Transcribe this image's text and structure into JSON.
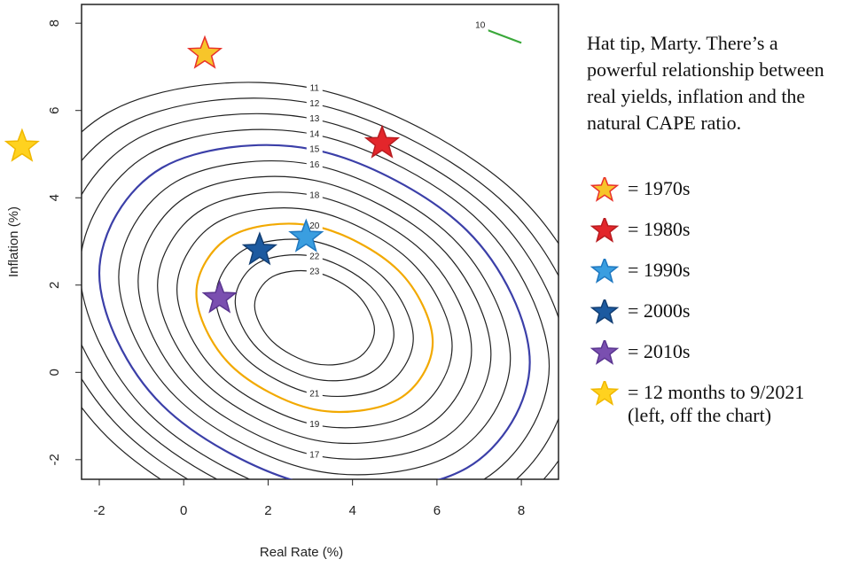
{
  "chart_data": {
    "type": "contour",
    "x_label": "Real Rate (%)",
    "y_label": "Inflation (%)",
    "xlim": [
      -2.42,
      8.88
    ],
    "ylim": [
      -2.45,
      8.43
    ],
    "xticks": [
      -2,
      0,
      2,
      4,
      6,
      8
    ],
    "yticks": [
      -2,
      0,
      2,
      4,
      6,
      8
    ],
    "note": "Hat tip, Marty.  There’s a powerful relationship between real yields, inflation and the natural CAPE ratio.",
    "contours": [
      {
        "level": 23,
        "color": "#222222",
        "closed": true,
        "x": [
          4.52,
          4.1,
          3.1,
          2.1,
          1.68,
          2.1,
          3.1,
          4.1
        ],
        "y": [
          0.97,
          1.79,
          2.3,
          2.19,
          1.53,
          0.71,
          0.2,
          0.31
        ]
      },
      {
        "level": 22,
        "color": "#222222",
        "closed": true,
        "x": [
          4.98,
          4.43,
          3.1,
          1.77,
          1.22,
          1.77,
          3.1,
          4.43
        ],
        "y": [
          0.87,
          1.97,
          2.65,
          2.51,
          1.63,
          0.53,
          -0.15,
          -0.01
        ]
      },
      {
        "level": 21,
        "color": "#222222",
        "closed": true,
        "x": [
          5.44,
          4.75,
          3.1,
          1.45,
          0.76,
          1.45,
          3.1,
          4.75
        ],
        "y": [
          0.78,
          2.16,
          3.0,
          2.82,
          1.72,
          0.34,
          -0.5,
          -0.32
        ]
      },
      {
        "level": 20,
        "color": "#f2a900",
        "closed": true,
        "x": [
          5.9,
          5.08,
          3.1,
          1.12,
          0.3,
          1.12,
          3.1,
          5.08
        ],
        "y": [
          0.69,
          2.34,
          3.35,
          3.12,
          1.81,
          0.16,
          -0.85,
          -0.62
        ]
      },
      {
        "level": 19,
        "color": "#222222",
        "closed": true,
        "x": [
          6.36,
          5.4,
          3.1,
          0.8,
          -0.16,
          0.8,
          3.1,
          5.4
        ],
        "y": [
          0.6,
          2.52,
          3.7,
          3.44,
          1.9,
          -0.02,
          -1.2,
          -0.94
        ]
      },
      {
        "level": 18,
        "color": "#222222",
        "closed": true,
        "x": [
          6.82,
          5.73,
          3.1,
          0.47,
          -0.62,
          0.47,
          3.1,
          5.73
        ],
        "y": [
          0.51,
          2.71,
          4.05,
          3.75,
          1.99,
          -0.21,
          -1.55,
          -1.25
        ]
      },
      {
        "level": 17,
        "color": "#222222",
        "closed": true,
        "x": [
          7.28,
          6.06,
          3.1,
          0.14,
          -1.08,
          0.14,
          3.1,
          6.06
        ],
        "y": [
          0.41,
          2.89,
          4.4,
          4.07,
          2.09,
          -0.39,
          -1.9,
          -1.57
        ]
      },
      {
        "level": 16,
        "color": "#222222",
        "closed": true,
        "x": [
          7.74,
          6.38,
          3.1,
          -0.18,
          -1.54,
          -0.18,
          3.1,
          6.38
        ],
        "y": [
          0.32,
          3.07,
          4.75,
          4.37,
          2.18,
          -0.57,
          -2.25,
          -1.87
        ]
      },
      {
        "level": 15,
        "color": "#3b3fa8",
        "closed": true,
        "x": [
          8.2,
          6.71,
          3.1,
          -0.51,
          -2.0,
          -0.51,
          3.1,
          6.71
        ],
        "y": [
          0.23,
          3.25,
          5.1,
          4.69,
          2.27,
          -0.75,
          -2.6,
          -2.19
        ]
      },
      {
        "level": 14,
        "color": "#222222",
        "closed": true,
        "x": [
          8.66,
          7.03,
          3.1,
          -0.83,
          -2.46,
          -0.83,
          3.1,
          7.03
        ],
        "y": [
          0.14,
          3.44,
          5.45,
          5.0,
          2.36,
          -0.94,
          -2.95,
          -2.5
        ]
      },
      {
        "level": 13,
        "color": "#222222",
        "closed": true,
        "x": [
          9.12,
          7.36,
          3.1,
          -1.16,
          -2.92,
          -1.16,
          3.1,
          7.36
        ],
        "y": [
          0.05,
          3.62,
          5.8,
          5.32,
          2.45,
          -1.12,
          -3.3,
          -2.82
        ]
      },
      {
        "level": 12,
        "color": "#222222",
        "closed": true,
        "x": [
          9.58,
          7.68,
          3.1,
          -1.48,
          -3.38,
          -1.48,
          3.1,
          7.68
        ],
        "y": [
          -0.05,
          3.8,
          6.15,
          5.62,
          2.55,
          -1.3,
          -3.65,
          -3.12
        ]
      },
      {
        "level": 11,
        "color": "#222222",
        "closed": true,
        "x": [
          10.04,
          8.01,
          3.1,
          -1.81,
          -3.84,
          -1.81,
          3.1,
          8.01
        ],
        "y": [
          -0.14,
          3.98,
          6.5,
          5.94,
          2.64,
          -1.48,
          -4.0,
          -3.52
        ]
      },
      {
        "level": 10,
        "color": "#3aa83a",
        "closed": false,
        "x": [
          6.9,
          8.0
        ],
        "y": [
          7.95,
          7.55
        ]
      }
    ],
    "series": [
      {
        "name": "= 1970s",
        "color": "#f7c52a",
        "stroke": "#e8312a",
        "x": [
          0.5
        ],
        "y": [
          7.3
        ]
      },
      {
        "name": "= 1980s",
        "color": "#e3262b",
        "stroke": "#b81c20",
        "x": [
          4.7
        ],
        "y": [
          5.25
        ]
      },
      {
        "name": "= 1990s",
        "color": "#3a9ee0",
        "stroke": "#1f78c0",
        "x": [
          2.9
        ],
        "y": [
          3.1
        ]
      },
      {
        "name": "= 2000s",
        "color": "#1c5aa0",
        "stroke": "#123e73",
        "x": [
          1.8
        ],
        "y": [
          2.8
        ]
      },
      {
        "name": "= 2010s",
        "color": "#7a4fb0",
        "stroke": "#5a3590",
        "x": [
          0.85
        ],
        "y": [
          1.7
        ]
      },
      {
        "name": "= 12 months to 9/2021 (left, off the chart)",
        "color": "#ffd21f",
        "stroke": "#f0b800",
        "x": [
          -3.83
        ],
        "y": [
          5.17
        ]
      }
    ]
  }
}
